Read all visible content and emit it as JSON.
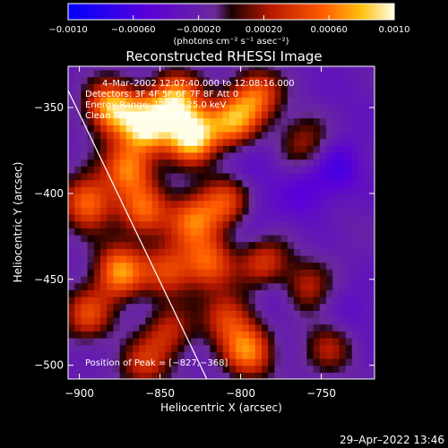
{
  "chart_data": {
    "type": "heatmap",
    "title": "Reconstructed RHESSI Image",
    "xlabel": "Heliocentric X (arcsec)",
    "ylabel": "Heliocentric Y (arcsec)",
    "xlim": [
      -907,
      -717
    ],
    "ylim": [
      -508,
      -326
    ],
    "x_ticks": [
      {
        "value": -900,
        "label": "−900"
      },
      {
        "value": -850,
        "label": "−850"
      },
      {
        "value": -800,
        "label": "−800"
      },
      {
        "value": -750,
        "label": "−750"
      }
    ],
    "y_ticks": [
      {
        "value": -350,
        "label": "−350"
      },
      {
        "value": -400,
        "label": "−400"
      },
      {
        "value": -450,
        "label": "−450"
      },
      {
        "value": -500,
        "label": "−500"
      }
    ],
    "colorbar": {
      "range": [
        -0.001,
        0.001
      ],
      "unit_label": "(photons cm⁻² s⁻¹ asec⁻²)",
      "ticks": [
        {
          "value": -0.001,
          "label": "−0.0010"
        },
        {
          "value": -0.0006,
          "label": "−0.00060"
        },
        {
          "value": -0.0002,
          "label": "−0.00020"
        },
        {
          "value": 0.0002,
          "label": "0.00020"
        },
        {
          "value": 0.0006,
          "label": "0.00060"
        },
        {
          "value": 0.001,
          "label": "0.0010"
        }
      ]
    },
    "annotations": [
      "4–Mar–2002 12:07:40.000 to 12:08:16.000",
      "Detectors: 3F 4F 5F 6F 7F 8F  Att 0",
      "Energy Range: 12.0 − 25.0 keV",
      "Clean     Total counts: 391"
    ],
    "peak_label": "Position of Peak = [−827,−368]",
    "peak": [
      -827,
      -368
    ],
    "limb_line": [
      [
        -907,
        -340
      ],
      [
        -821,
        -508
      ]
    ],
    "grid": false,
    "hotspots": [
      {
        "x": -830,
        "y": -366,
        "v": 0.001
      },
      {
        "x": -858,
        "y": -360,
        "v": 0.0009
      },
      {
        "x": -880,
        "y": -350,
        "v": 0.0008
      },
      {
        "x": -840,
        "y": -345,
        "v": 0.0007
      },
      {
        "x": -805,
        "y": -358,
        "v": 0.0006
      },
      {
        "x": -790,
        "y": -343,
        "v": 0.0005
      },
      {
        "x": -870,
        "y": -385,
        "v": 0.0006
      },
      {
        "x": -895,
        "y": -405,
        "v": 0.0006
      },
      {
        "x": -860,
        "y": -410,
        "v": 0.0005
      },
      {
        "x": -830,
        "y": -415,
        "v": 0.0005
      },
      {
        "x": -810,
        "y": -405,
        "v": 0.0004
      },
      {
        "x": -875,
        "y": -445,
        "v": 0.0007
      },
      {
        "x": -845,
        "y": -445,
        "v": 0.0004
      },
      {
        "x": -820,
        "y": -440,
        "v": 0.0005
      },
      {
        "x": -785,
        "y": -440,
        "v": 0.0004
      },
      {
        "x": -760,
        "y": -455,
        "v": 0.0003
      },
      {
        "x": -895,
        "y": -470,
        "v": 0.0004
      },
      {
        "x": -845,
        "y": -480,
        "v": 0.0003
      },
      {
        "x": -808,
        "y": -472,
        "v": 0.0004
      },
      {
        "x": -795,
        "y": -492,
        "v": 0.0006
      },
      {
        "x": -860,
        "y": -500,
        "v": 0.0003
      },
      {
        "x": -745,
        "y": -490,
        "v": 0.0002
      },
      {
        "x": -760,
        "y": -370,
        "v": 0.0002
      },
      {
        "x": -735,
        "y": -420,
        "v": -0.0002
      },
      {
        "x": -790,
        "y": -420,
        "v": -0.0004
      },
      {
        "x": -760,
        "y": -400,
        "v": -0.0005
      },
      {
        "x": -740,
        "y": -385,
        "v": -0.0006
      },
      {
        "x": -775,
        "y": -460,
        "v": -0.0005
      },
      {
        "x": -812,
        "y": -375,
        "v": -0.0003
      },
      {
        "x": -850,
        "y": -470,
        "v": -0.0003
      },
      {
        "x": -730,
        "y": -470,
        "v": -0.0004
      },
      {
        "x": -790,
        "y": -383,
        "v": -0.0004
      },
      {
        "x": -735,
        "y": -350,
        "v": -0.0003
      }
    ]
  },
  "footer": {
    "timestamp": "29–Apr–2022 13:46"
  }
}
